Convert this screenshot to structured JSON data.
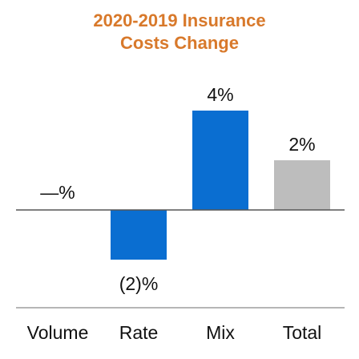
{
  "chart_data": {
    "type": "bar",
    "title_lines": [
      "2020-2019 Insurance",
      "Costs Change"
    ],
    "categories": [
      "Volume",
      "Rate",
      "Mix",
      "Total"
    ],
    "values": [
      0,
      -2,
      4,
      2
    ],
    "data_labels": [
      "—%",
      "(2)%",
      "4%",
      "2%"
    ],
    "units": "%",
    "ylim": [
      -2,
      4
    ],
    "grid": false,
    "legend": "none",
    "colors": {
      "Volume": "#0A6ED1",
      "Rate": "#0A6ED1",
      "Mix": "#0A6ED1",
      "Total": "#BDBDBD"
    }
  }
}
